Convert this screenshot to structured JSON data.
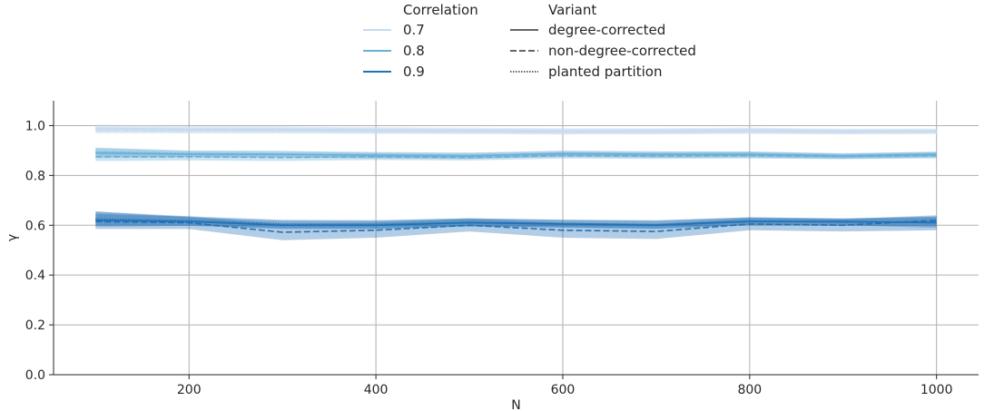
{
  "chart_data": {
    "type": "line",
    "xlabel": "N",
    "ylabel": "γ",
    "xlim": [
      55,
      1045
    ],
    "ylim": [
      0.0,
      1.1
    ],
    "x_ticks": [
      200,
      400,
      600,
      800,
      1000
    ],
    "y_ticks": [
      0.0,
      0.2,
      0.4,
      0.6,
      0.8,
      1.0
    ],
    "grid": true,
    "legend": {
      "placement": "top-center",
      "hue_title": "Correlation",
      "style_title": "Variant",
      "hue_entries": [
        {
          "label": "0.7",
          "color": "#c6dbef"
        },
        {
          "label": "0.8",
          "color": "#6baed6"
        },
        {
          "label": "0.9",
          "color": "#2171b5"
        }
      ],
      "style_entries": [
        {
          "label": "degree-corrected",
          "dash": "solid"
        },
        {
          "label": "non-degree-corrected",
          "dash": "dashed"
        },
        {
          "label": "planted partition",
          "dash": "dotted"
        }
      ]
    },
    "x": [
      100,
      200,
      300,
      400,
      500,
      600,
      700,
      800,
      900,
      1000
    ],
    "series": [
      {
        "correlation": "0.7",
        "variant": "degree-corrected",
        "color": "#c6dbef",
        "dash": "solid",
        "values": [
          0.99,
          0.985,
          0.985,
          0.982,
          0.98,
          0.978,
          0.978,
          0.98,
          0.977,
          0.978
        ],
        "ci_low": [
          0.975,
          0.972,
          0.972,
          0.97,
          0.968,
          0.966,
          0.966,
          0.968,
          0.966,
          0.968
        ],
        "ci_high": [
          1.005,
          0.998,
          0.998,
          0.995,
          0.992,
          0.99,
          0.99,
          0.992,
          0.988,
          0.988
        ]
      },
      {
        "correlation": "0.7",
        "variant": "non-degree-corrected",
        "color": "#c6dbef",
        "dash": "dashed",
        "values": [
          0.98,
          0.98,
          0.98,
          0.978,
          0.977,
          0.975,
          0.976,
          0.978,
          0.975,
          0.976
        ],
        "ci_low": [
          0.968,
          0.968,
          0.968,
          0.966,
          0.966,
          0.964,
          0.965,
          0.967,
          0.965,
          0.966
        ],
        "ci_high": [
          0.992,
          0.992,
          0.992,
          0.99,
          0.988,
          0.986,
          0.987,
          0.989,
          0.985,
          0.986
        ]
      },
      {
        "correlation": "0.7",
        "variant": "planted partition",
        "color": "#c6dbef",
        "dash": "dotted",
        "values": [
          0.985,
          0.983,
          0.982,
          0.98,
          0.978,
          0.977,
          0.977,
          0.979,
          0.976,
          0.977
        ],
        "ci_low": [
          0.972,
          0.971,
          0.97,
          0.968,
          0.967,
          0.966,
          0.966,
          0.968,
          0.966,
          0.967
        ],
        "ci_high": [
          0.998,
          0.995,
          0.994,
          0.992,
          0.989,
          0.988,
          0.988,
          0.99,
          0.986,
          0.987
        ]
      },
      {
        "correlation": "0.8",
        "variant": "degree-corrected",
        "color": "#6baed6",
        "dash": "solid",
        "values": [
          0.89,
          0.885,
          0.885,
          0.88,
          0.878,
          0.888,
          0.885,
          0.885,
          0.878,
          0.885
        ],
        "ci_low": [
          0.87,
          0.872,
          0.872,
          0.868,
          0.866,
          0.876,
          0.873,
          0.874,
          0.868,
          0.874
        ],
        "ci_high": [
          0.91,
          0.898,
          0.898,
          0.892,
          0.89,
          0.9,
          0.897,
          0.896,
          0.888,
          0.896
        ]
      },
      {
        "correlation": "0.8",
        "variant": "non-degree-corrected",
        "color": "#6baed6",
        "dash": "dashed",
        "values": [
          0.875,
          0.875,
          0.872,
          0.875,
          0.872,
          0.88,
          0.878,
          0.88,
          0.876,
          0.88
        ],
        "ci_low": [
          0.858,
          0.86,
          0.858,
          0.862,
          0.86,
          0.868,
          0.866,
          0.868,
          0.865,
          0.868
        ],
        "ci_high": [
          0.892,
          0.89,
          0.886,
          0.888,
          0.884,
          0.892,
          0.89,
          0.892,
          0.887,
          0.892
        ]
      },
      {
        "correlation": "0.8",
        "variant": "planted partition",
        "color": "#6baed6",
        "dash": "dotted",
        "values": [
          0.895,
          0.888,
          0.885,
          0.882,
          0.88,
          0.885,
          0.883,
          0.884,
          0.878,
          0.883
        ],
        "ci_low": [
          0.878,
          0.875,
          0.872,
          0.87,
          0.868,
          0.873,
          0.871,
          0.872,
          0.867,
          0.872
        ],
        "ci_high": [
          0.912,
          0.9,
          0.898,
          0.894,
          0.892,
          0.897,
          0.895,
          0.896,
          0.889,
          0.894
        ]
      },
      {
        "correlation": "0.9",
        "variant": "degree-corrected",
        "color": "#2171b5",
        "dash": "solid",
        "values": [
          0.62,
          0.615,
          0.6,
          0.6,
          0.61,
          0.605,
          0.6,
          0.615,
          0.615,
          0.61
        ],
        "ci_low": [
          0.595,
          0.598,
          0.585,
          0.585,
          0.595,
          0.59,
          0.585,
          0.6,
          0.6,
          0.59
        ],
        "ci_high": [
          0.655,
          0.632,
          0.618,
          0.618,
          0.628,
          0.622,
          0.618,
          0.632,
          0.628,
          0.635
        ]
      },
      {
        "correlation": "0.9",
        "variant": "non-degree-corrected",
        "color": "#2171b5",
        "dash": "dashed",
        "values": [
          0.615,
          0.61,
          0.572,
          0.58,
          0.6,
          0.58,
          0.575,
          0.605,
          0.6,
          0.62
        ],
        "ci_low": [
          0.585,
          0.585,
          0.54,
          0.55,
          0.575,
          0.55,
          0.545,
          0.58,
          0.575,
          0.58
        ],
        "ci_high": [
          0.645,
          0.635,
          0.605,
          0.61,
          0.625,
          0.61,
          0.605,
          0.628,
          0.625,
          0.64
        ]
      },
      {
        "correlation": "0.9",
        "variant": "planted partition",
        "color": "#2171b5",
        "dash": "dotted",
        "values": [
          0.625,
          0.618,
          0.605,
          0.603,
          0.612,
          0.607,
          0.603,
          0.617,
          0.612,
          0.615
        ],
        "ci_low": [
          0.6,
          0.6,
          0.588,
          0.588,
          0.596,
          0.592,
          0.588,
          0.602,
          0.598,
          0.598
        ],
        "ci_high": [
          0.655,
          0.636,
          0.622,
          0.62,
          0.628,
          0.622,
          0.62,
          0.632,
          0.626,
          0.632
        ]
      }
    ]
  }
}
